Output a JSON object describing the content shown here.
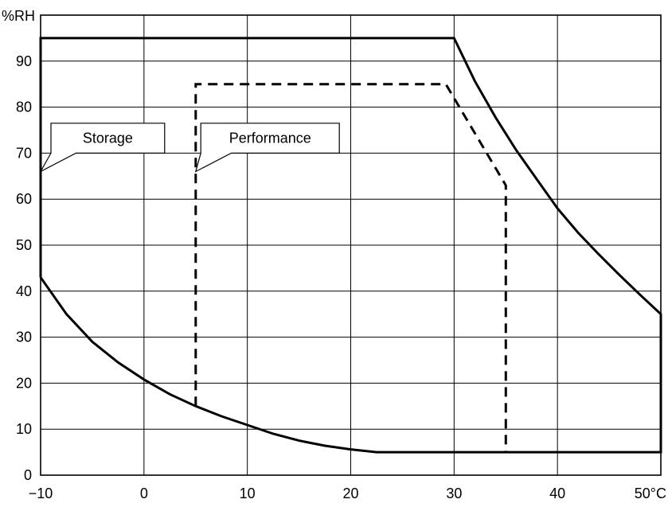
{
  "chart_data": {
    "type": "line",
    "title": "",
    "xlabel": "",
    "ylabel": "",
    "x_unit": "°C",
    "y_unit": "%RH",
    "xlim": [
      -10,
      50
    ],
    "ylim": [
      0,
      100
    ],
    "x_ticks": [
      -10,
      0,
      10,
      20,
      30,
      40,
      50
    ],
    "x_tick_labels": [
      "−10",
      "0",
      "10",
      "20",
      "30",
      "40",
      "50°C"
    ],
    "y_ticks": [
      0,
      10,
      20,
      30,
      40,
      50,
      60,
      70,
      80,
      90
    ],
    "y_tick_labels": [
      "0",
      "10",
      "20",
      "30",
      "40",
      "50",
      "60",
      "70",
      "80",
      "90"
    ],
    "x_grid": [
      -10,
      0,
      10,
      20,
      30,
      40,
      50
    ],
    "y_grid": [
      0,
      10,
      20,
      30,
      40,
      50,
      60,
      70,
      80,
      90,
      100
    ],
    "grid": true,
    "series": [
      {
        "name": "Storage",
        "style": "solid",
        "points": [
          [
            -10,
            43
          ],
          [
            -10,
            95
          ],
          [
            30,
            95
          ],
          [
            32,
            85.7
          ],
          [
            34,
            77.8
          ],
          [
            36,
            70.7
          ],
          [
            38,
            64.3
          ],
          [
            40,
            58
          ],
          [
            42,
            52.7
          ],
          [
            44,
            48
          ],
          [
            46,
            43.5
          ],
          [
            48,
            39.2
          ],
          [
            50,
            35
          ],
          [
            50,
            5
          ],
          [
            22.5,
            5
          ],
          [
            20,
            5.6
          ],
          [
            17.5,
            6.4
          ],
          [
            15,
            7.5
          ],
          [
            12.5,
            9
          ],
          [
            10,
            10.9
          ],
          [
            7.5,
            12.8
          ],
          [
            5,
            15
          ],
          [
            2.5,
            17.6
          ],
          [
            0,
            20.8
          ],
          [
            -2.5,
            24.5
          ],
          [
            -5,
            29
          ],
          [
            -7.5,
            35
          ],
          [
            -10,
            43
          ]
        ]
      },
      {
        "name": "Performance",
        "style": "dashed",
        "points": [
          [
            5,
            15
          ],
          [
            5,
            85
          ],
          [
            29.2,
            85
          ],
          [
            35,
            63
          ],
          [
            35,
            5
          ]
        ]
      }
    ],
    "annotations": [
      {
        "text": "Storage",
        "box_anchor": [
          -9,
          76.5
        ],
        "box_size": [
          11,
          6.5
        ],
        "pointer_to": [
          -10,
          66
        ]
      },
      {
        "text": "Performance",
        "box_anchor": [
          5.5,
          76.5
        ],
        "box_size": [
          13.4,
          6.5
        ],
        "pointer_to": [
          5,
          66
        ]
      }
    ]
  }
}
